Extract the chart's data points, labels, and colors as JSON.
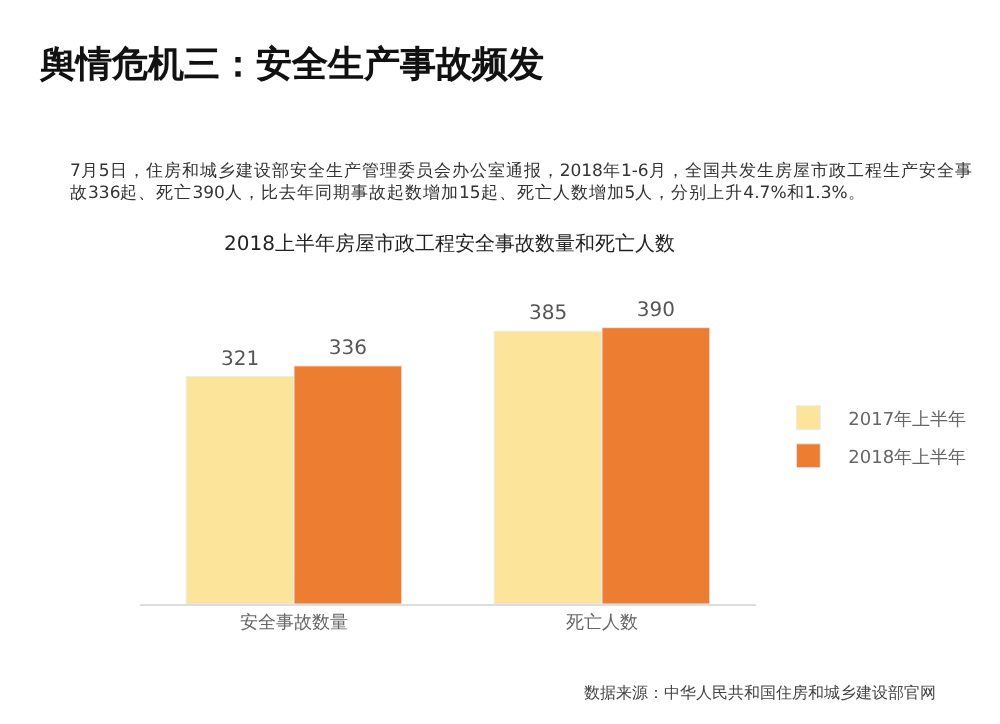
{
  "chart_data": {
    "type": "bar",
    "title": "舆情危机三：安全生产事故频发",
    "subtitle": "7月5日，住房和城乡建设部安全生产管理委员会办公室通报，2018年1-6月，全国共发生房屋市政工程生产安全事故336起、死亡390人，比去年同期事故起数增加15起、死亡人数增加5人，分别上升4.7%和1.3%。",
    "annotations": [
      "2018上半年房屋市政工程安全事故数量和死亡人数",
      "数据来源：中华人民共和国住房和城乡建设部官网"
    ],
    "categories": [
      "安全事故数量",
      "死亡人数"
    ],
    "series": [
      {
        "name": "2017年上半年",
        "color": "#fde49b",
        "values": [
          321,
          385
        ]
      },
      {
        "name": "2018年上半年",
        "color": "#ed7d31",
        "values": [
          336,
          390
        ]
      }
    ],
    "data_labels": true,
    "legend": "right"
  }
}
